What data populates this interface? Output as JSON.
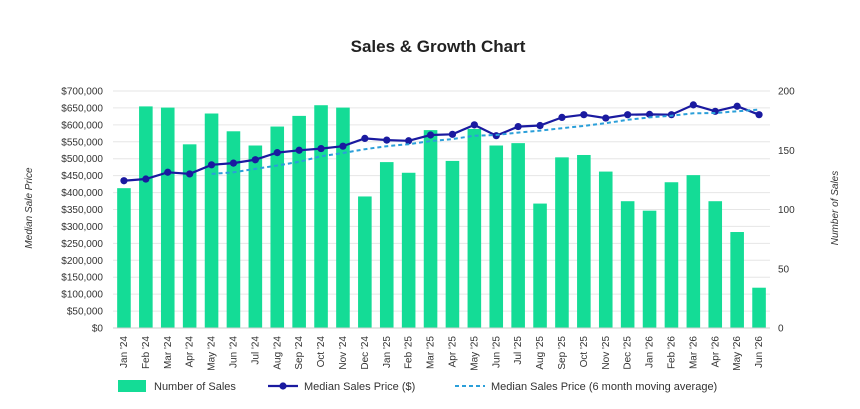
{
  "chart_data": {
    "type": "bar",
    "title": "Sales & Growth Chart",
    "categories": [
      "Jan '24",
      "Feb '24",
      "Mar '24",
      "Apr '24",
      "May '24",
      "Jun '24",
      "Jul '24",
      "Aug '24",
      "Sep '24",
      "Oct '24",
      "Nov '24",
      "Dec '24",
      "Jan '25",
      "Feb '25",
      "Mar '25",
      "Apr '25",
      "May '25",
      "Jun '25",
      "Jul '25",
      "Aug '25",
      "Sep '25",
      "Oct '25",
      "Nov '25",
      "Dec '25",
      "Jan '26",
      "Feb '26",
      "Mar '26",
      "Apr '26",
      "May '26",
      "Jun '26"
    ],
    "series": [
      {
        "name": "Number of Sales",
        "type": "bar",
        "axis": "right",
        "color": "#14dc96",
        "values": [
          118,
          187,
          186,
          155,
          181,
          166,
          154,
          170,
          179,
          188,
          186,
          111,
          140,
          131,
          167,
          141,
          168,
          154,
          156,
          105,
          144,
          146,
          132,
          107,
          99,
          123,
          129,
          107,
          81,
          34
        ]
      },
      {
        "name": "Median Sales Price ($)",
        "type": "line",
        "axis": "left",
        "color": "#1a1aa0",
        "values": [
          435000,
          440000,
          460000,
          455000,
          482000,
          487000,
          497000,
          518000,
          525000,
          530000,
          537000,
          560000,
          555000,
          553000,
          570000,
          572000,
          600000,
          568000,
          595000,
          598000,
          622000,
          630000,
          620000,
          630000,
          631000,
          630000,
          659000,
          640000,
          655000,
          630000
        ]
      },
      {
        "name": "Median Sales Price (6 month moving average)",
        "type": "line",
        "axis": "left",
        "color": "#2b9fd9",
        "dashed": true,
        "start_index": 4,
        "values": [
          null,
          null,
          null,
          null,
          455000,
          460000,
          470000,
          480000,
          491000,
          507000,
          517000,
          528000,
          537000,
          543000,
          552000,
          558000,
          568000,
          570000,
          577000,
          583000,
          590000,
          597000,
          605000,
          615000,
          622000,
          627000,
          634000,
          635000,
          640000,
          645000
        ]
      }
    ],
    "y_left": {
      "label": "Median Sale Price",
      "min": 0,
      "max": 700000,
      "step": 50000,
      "ticks": [
        "$0",
        "$50,000",
        "$100,000",
        "$150,000",
        "$200,000",
        "$250,000",
        "$300,000",
        "$350,000",
        "$400,000",
        "$450,000",
        "$500,000",
        "$550,000",
        "$600,000",
        "$650,000",
        "$700,000"
      ]
    },
    "y_right": {
      "label": "Number of Sales",
      "min": 0,
      "max": 200,
      "step": 50,
      "ticks": [
        "0",
        "50",
        "100",
        "150",
        "200"
      ]
    },
    "grid": true,
    "legend_position": "bottom"
  }
}
